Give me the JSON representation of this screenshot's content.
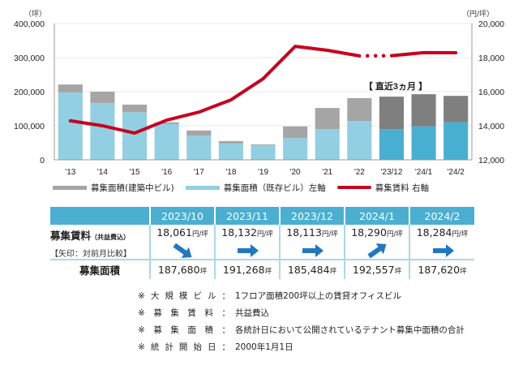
{
  "chart_data": {
    "type": "bar+line",
    "title": "",
    "categories": [
      "'13",
      "'14",
      "'15",
      "'16",
      "'17",
      "'18",
      "'19",
      "'20",
      "'21",
      "'22",
      "'23/12",
      "'24/1",
      "'24/2"
    ],
    "recent_group_label": "【 直近3ヵ月 】",
    "recent_from_index": 10,
    "left_axis": {
      "unit": "（坪）",
      "ylim": [
        0,
        400000
      ],
      "ticks": [
        "0",
        "100,000",
        "200,000",
        "300,000",
        "400,000"
      ]
    },
    "right_axis": {
      "unit": "（円/坪）",
      "ylim": [
        12000,
        20000
      ],
      "ticks": [
        "12,000",
        "14,000",
        "16,000",
        "18,000",
        "20,000"
      ]
    },
    "grid": true,
    "series": [
      {
        "name": "募集面積（既存ビル）左軸",
        "type": "bar-stacked",
        "axis": "left",
        "values": [
          198000,
          167000,
          140000,
          105000,
          71000,
          48000,
          42000,
          64000,
          90000,
          114000,
          90000,
          98000,
          110000
        ]
      },
      {
        "name": "募集面積（建築中ビル）",
        "type": "bar-stacked",
        "axis": "left",
        "values": [
          23000,
          33000,
          22000,
          5000,
          15000,
          7000,
          3000,
          34000,
          62000,
          67000,
          95484,
          94557,
          77620
        ]
      },
      {
        "name": "募集賃料 右軸",
        "type": "line",
        "axis": "right",
        "values": [
          14290,
          14000,
          13570,
          14330,
          14800,
          15520,
          16760,
          18660,
          18430,
          18100,
          18113,
          18290,
          18284
        ],
        "dotted_segment_between": [
          "'22",
          "'23/12"
        ]
      }
    ],
    "colors": {
      "existing": "#92cfe3",
      "existing_recent": "#48afd2",
      "construction": "#a5a5a5",
      "construction_recent": "#7f7f7f",
      "rent_line": "#c8001e",
      "grid": "#e8e8e8",
      "axis": "#999999"
    },
    "legend": [
      {
        "label": "募集面積(建築中ビル)",
        "color": "#a5a5a5"
      },
      {
        "label": "募集面積（既存ビル）左軸",
        "color": "#92cfe3"
      },
      {
        "label": "募集賃料 右軸",
        "color": "#c8001e"
      }
    ]
  },
  "table": {
    "columns": [
      "2023/10",
      "2023/11",
      "2023/12",
      "2024/1",
      "2024/2"
    ],
    "rent_label": "募集賃料",
    "rent_label_sub": "（共益費込）",
    "arrow_note": "【矢印：対前月比較】",
    "rent_unit": "円/坪",
    "rent_values": [
      "18,061",
      "18,132",
      "18,113",
      "18,290",
      "18,284"
    ],
    "rent_arrows": [
      "down-right",
      "right",
      "right",
      "up-right",
      "right"
    ],
    "area_label": "募集面積",
    "area_unit": "坪",
    "area_values": [
      "187,680",
      "191,268",
      "185,484",
      "192,557",
      "187,620"
    ],
    "header_color": "#4aafd1",
    "arrow_color": "#1f78c1"
  },
  "notes": [
    {
      "prefix": "※",
      "key": [
        "大",
        "規",
        "模",
        "ビ",
        "ル"
      ],
      "sep": "：",
      "value": "1フロア面積200坪以上の賃貸オフィスビル"
    },
    {
      "prefix": "※",
      "key": [
        "募",
        "集",
        "賃",
        "料"
      ],
      "sep": "：",
      "value": "共益費込"
    },
    {
      "prefix": "※",
      "key": [
        "募",
        "集",
        "面",
        "積"
      ],
      "sep": "：",
      "value": "各統計日において公開されているテナント募集中面積の合計"
    },
    {
      "prefix": "※",
      "key": [
        "統",
        "計",
        "開",
        "始",
        "日"
      ],
      "sep": "：",
      "value": "2000年1月1日"
    }
  ]
}
